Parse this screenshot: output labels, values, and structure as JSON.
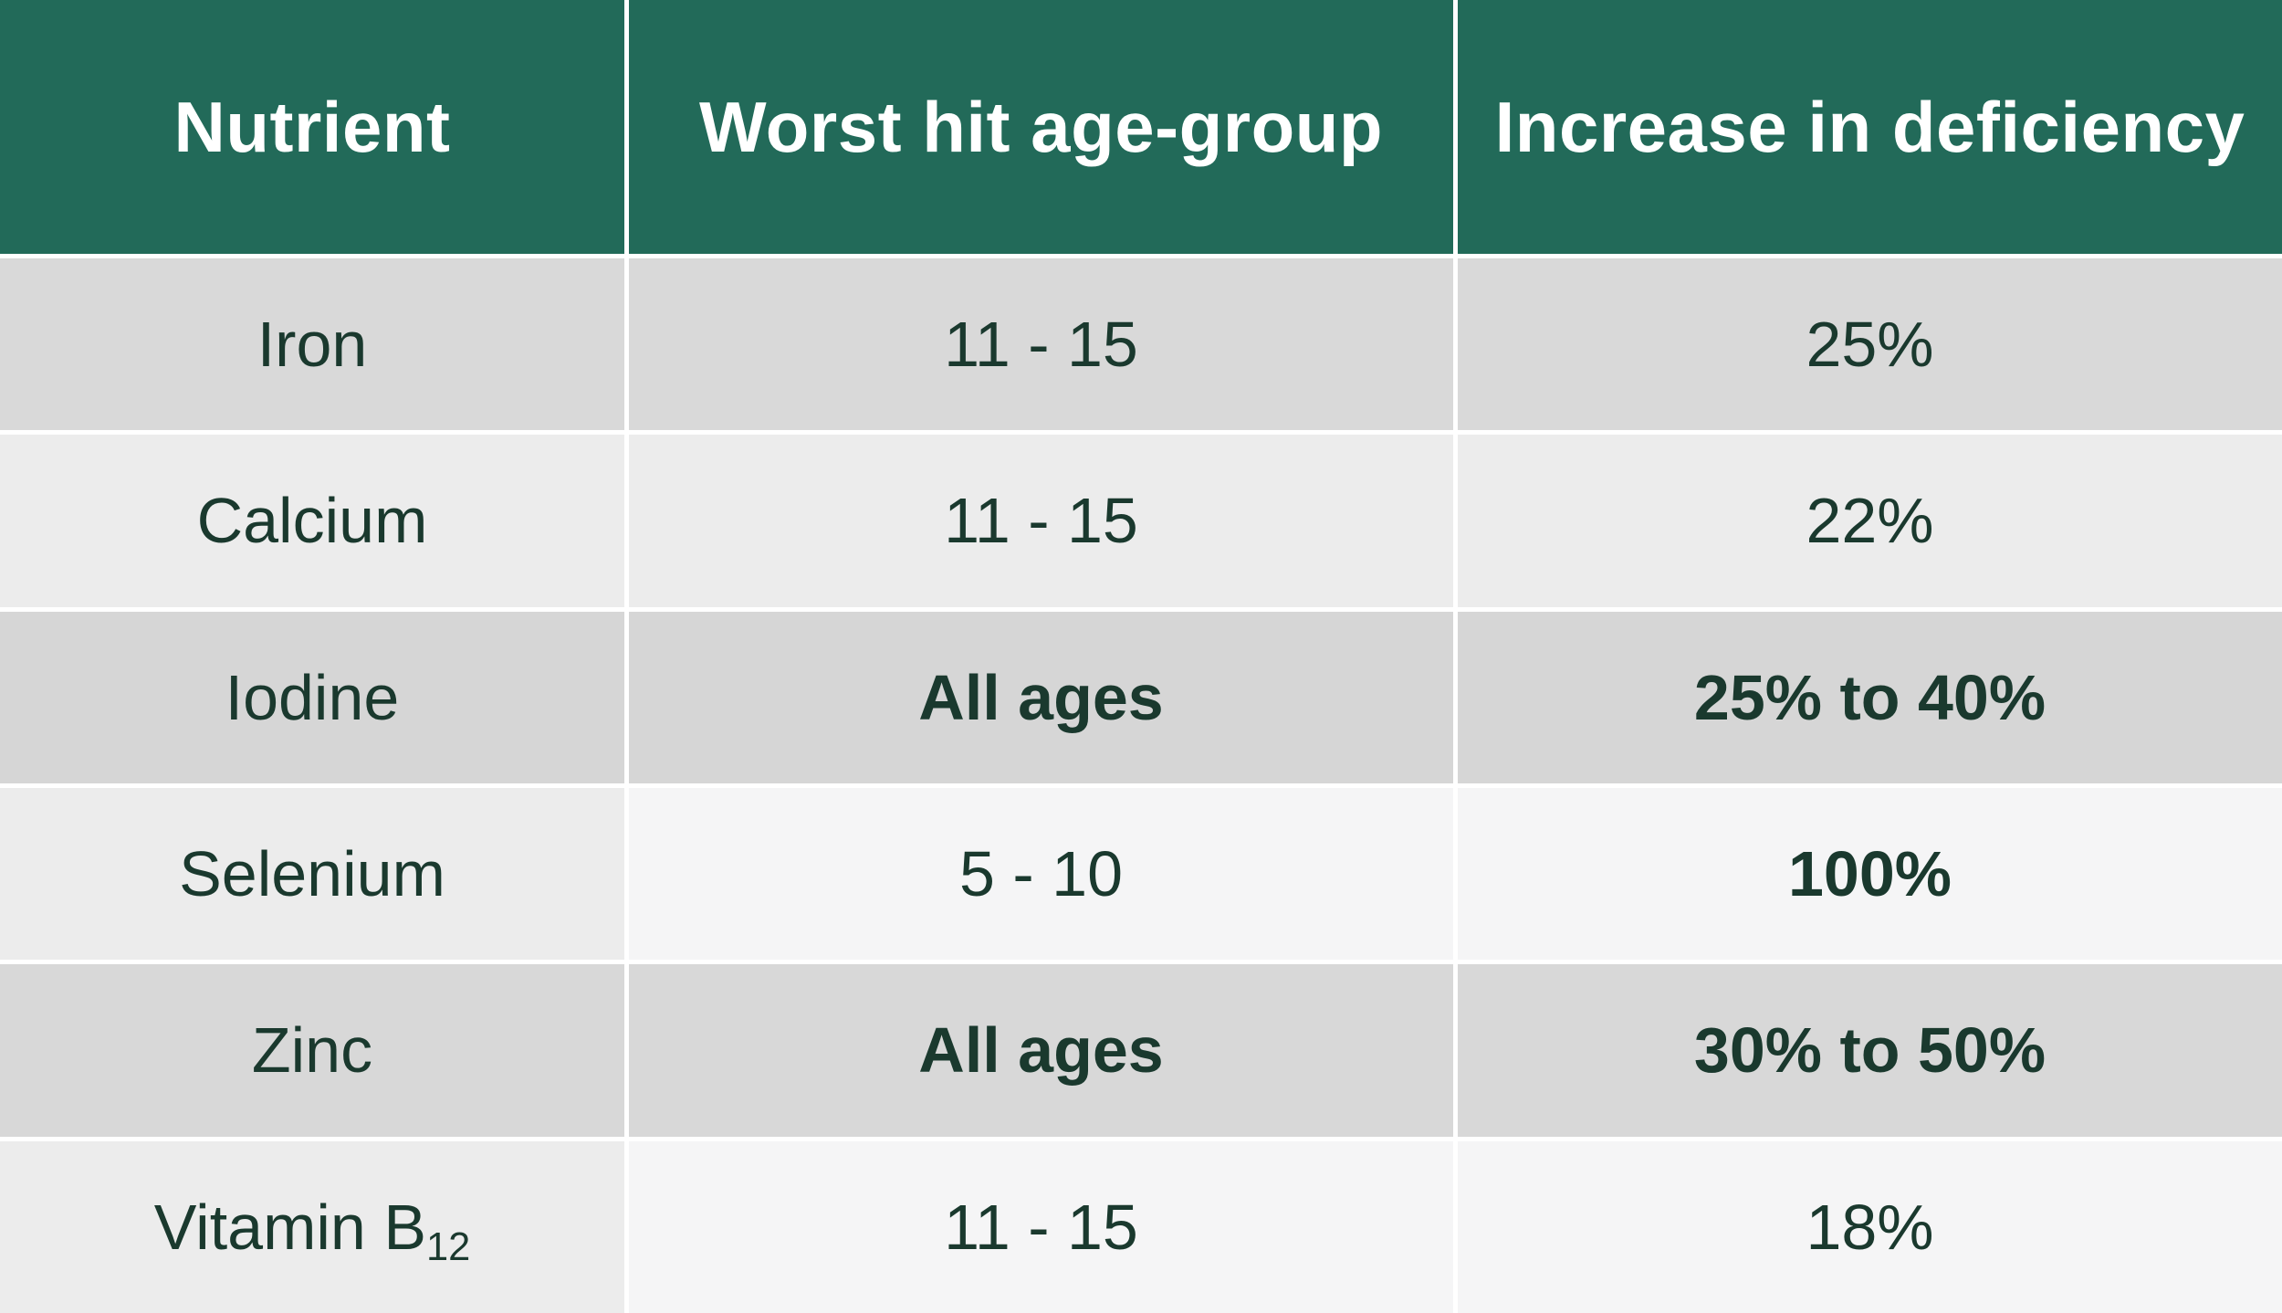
{
  "chart_data": {
    "type": "table",
    "title": "",
    "columns": [
      "Nutrient",
      "Worst hit age-group",
      "Increase in deficiency"
    ],
    "rows": [
      [
        "Iron",
        "11 - 15",
        "25%"
      ],
      [
        "Calcium",
        "11 - 15",
        "22%"
      ],
      [
        "Iodine",
        "All ages",
        "25% to 40%"
      ],
      [
        "Selenium",
        "5 - 10",
        "100%"
      ],
      [
        "Zinc",
        "All ages",
        "30% to 50%"
      ],
      [
        "Vitamin B12",
        "11 - 15",
        "18%"
      ]
    ],
    "bold_cells": [
      "Iodine: All ages",
      "Iodine: 25% to 40%",
      "Selenium: 100%",
      "Zinc: All ages",
      "Zinc: 30% to 50%"
    ],
    "layout_hints": "green header row, alternating gray/light-gray banded rows, white grid lines, all text centered"
  },
  "table": {
    "columns": [
      "Nutrient",
      "Worst hit age-group",
      "Increase in deficiency"
    ],
    "rows": [
      {
        "cells": [
          {
            "text": "Iron",
            "weight": "normal"
          },
          {
            "text": "11 - 15",
            "weight": "normal"
          },
          {
            "text": "25%",
            "weight": "normal"
          }
        ]
      },
      {
        "cells": [
          {
            "text": "Calcium",
            "weight": "normal"
          },
          {
            "text": "11 - 15",
            "weight": "normal"
          },
          {
            "text": "22%",
            "weight": "normal"
          }
        ]
      },
      {
        "cells": [
          {
            "text": "Iodine",
            "weight": "normal"
          },
          {
            "text": "All ages",
            "weight": "bold"
          },
          {
            "text": "25% to 40%",
            "weight": "bold"
          }
        ]
      },
      {
        "cells": [
          {
            "text": "Selenium",
            "weight": "normal"
          },
          {
            "text": "5 - 10",
            "weight": "normal"
          },
          {
            "text": "100%",
            "weight": "bold"
          }
        ]
      },
      {
        "cells": [
          {
            "text": "Zinc",
            "weight": "normal"
          },
          {
            "text": "All ages",
            "weight": "bold"
          },
          {
            "text": "30% to 50%",
            "weight": "bold"
          }
        ]
      },
      {
        "cells": [
          {
            "text": "Vitamin B",
            "subscript": "12",
            "weight": "normal"
          },
          {
            "text": "11 - 15",
            "weight": "normal"
          },
          {
            "text": "18%",
            "weight": "normal"
          }
        ]
      }
    ]
  },
  "colors": {
    "header_bg": "#226a59",
    "header_text": "#ffffff",
    "body_text": "#1a392e",
    "row_dark_1": "#d9d9d9",
    "row_dark_2": "#d6d6d6",
    "row_dark_3": "#d8d8d8",
    "row_light": "#ececec",
    "row_lighter": "#f5f5f6",
    "grid_line": "#ffffff"
  }
}
